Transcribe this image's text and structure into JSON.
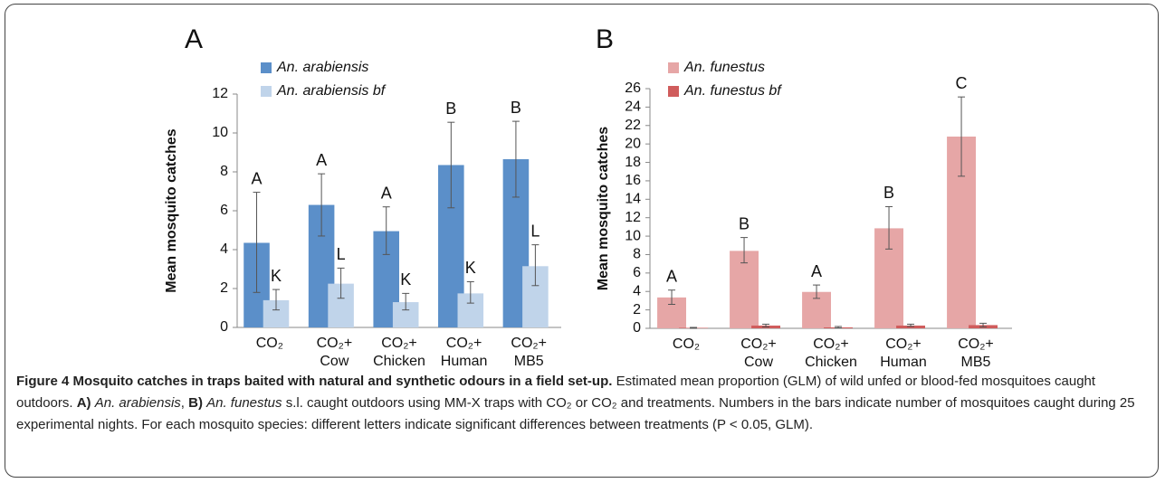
{
  "chart_data": [
    {
      "type": "bar",
      "panel": "A",
      "ylabel": "Mean mosquito catches",
      "categories": [
        "CO₂",
        "CO₂+\nCow",
        "CO₂+\nChicken",
        "CO₂+\nHuman",
        "CO₂+\nMB5"
      ],
      "ylim": [
        0,
        12
      ],
      "yticks": [
        0,
        2,
        4,
        6,
        8,
        10,
        12
      ],
      "series": [
        {
          "name": "An. arabiensis",
          "color": "#5b8fc9",
          "values": [
            4.35,
            6.3,
            4.95,
            8.35,
            8.65
          ],
          "err_lower": [
            1.8,
            4.7,
            3.75,
            6.15,
            6.7
          ],
          "err_upper": [
            6.95,
            7.9,
            6.2,
            10.55,
            10.6
          ],
          "letters": [
            "A",
            "A",
            "A",
            "B",
            "B"
          ]
        },
        {
          "name": "An. arabiensis bf",
          "color": "#c0d4ea",
          "values": [
            1.4,
            2.25,
            1.3,
            1.75,
            3.15
          ],
          "err_lower": [
            0.9,
            1.5,
            0.9,
            1.25,
            2.15
          ],
          "err_upper": [
            1.95,
            3.05,
            1.75,
            2.35,
            4.25
          ],
          "letters": [
            "K",
            "L",
            "K",
            "K",
            "L"
          ]
        }
      ]
    },
    {
      "type": "bar",
      "panel": "B",
      "ylabel": "Mean mosquito catches",
      "categories": [
        "CO₂",
        "CO₂+\nCow",
        "CO₂+\nChicken",
        "CO₂+\nHuman",
        "CO₂+\nMB5"
      ],
      "ylim": [
        0,
        26
      ],
      "yticks": [
        0,
        2,
        4,
        6,
        8,
        10,
        12,
        14,
        16,
        18,
        20,
        22,
        24,
        26
      ],
      "series": [
        {
          "name": "An. funestus",
          "color": "#e6a6a6",
          "values": [
            3.35,
            8.4,
            3.95,
            10.85,
            20.8
          ],
          "err_lower": [
            2.6,
            7.1,
            3.25,
            8.6,
            16.5
          ],
          "err_upper": [
            4.15,
            9.85,
            4.7,
            13.2,
            25.1
          ],
          "letters": [
            "A",
            "B",
            "A",
            "B",
            "C"
          ]
        },
        {
          "name": "An. funestus bf",
          "color": "#d05c5c",
          "values": [
            0.05,
            0.3,
            0.1,
            0.3,
            0.35
          ],
          "err_lower": [
            0,
            0.15,
            0.05,
            0.2,
            0.15
          ],
          "err_upper": [
            0.1,
            0.45,
            0.2,
            0.45,
            0.55
          ]
        }
      ]
    }
  ],
  "caption": {
    "title": "Figure 4 Mosquito catches in traps baited with natural and synthetic odours in a field set-up.",
    "text": [
      "Estimated mean proportion (GLM) of wild unfed or blood-fed mosquitoes caught outdoors.",
      "A)",
      "An. arabiensis",
      ",",
      "B)",
      "An. funestus",
      "s.l. caught outdoors using MM-X traps with CO₂ or CO₂ and treatments. Numbers in the bars indicate number of mosquitoes caught during 25 experimental nights. For each mosquito species: different letters indicate significant differences between treatments (P < 0.05, GLM)."
    ]
  }
}
